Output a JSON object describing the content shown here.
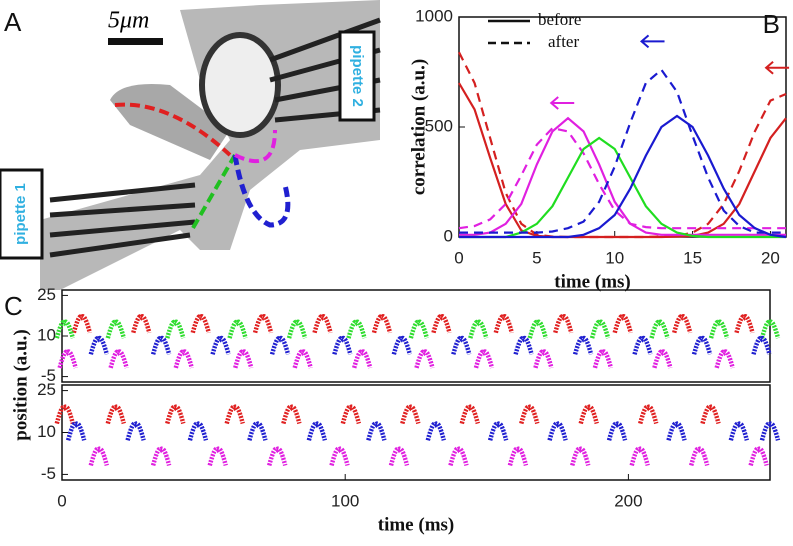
{
  "panel_a": {
    "label": "A",
    "scale_bar": "5μm",
    "pipettes": [
      "pipette 1",
      "pipette 2"
    ]
  },
  "chart_data": [
    {
      "type": "line",
      "label": "B",
      "xlabel": "time (ms)",
      "ylabel": "correlation (a.u.)",
      "x": [
        0,
        1,
        2,
        3,
        4,
        5,
        6,
        7,
        8,
        9,
        10,
        11,
        12,
        13,
        14,
        15,
        16,
        17,
        18,
        19,
        20,
        21
      ],
      "xlim": [
        0,
        21
      ],
      "xticks": [
        0,
        5,
        10,
        15,
        20
      ],
      "ylim": [
        0,
        1000
      ],
      "yticks": [
        0,
        500,
        1000
      ],
      "legend": [
        {
          "name": "before",
          "dash": "solid"
        },
        {
          "name": "after",
          "dash": "dashed"
        }
      ],
      "legend_position": "top",
      "series": [
        {
          "color": "#d42020",
          "dash": "solid",
          "values": [
            700,
            580,
            360,
            150,
            30,
            5,
            0,
            0,
            0,
            0,
            0,
            0,
            0,
            0,
            2,
            5,
            20,
            60,
            150,
            300,
            450,
            540
          ]
        },
        {
          "color": "#d42020",
          "dash": "dashed",
          "values": [
            840,
            700,
            450,
            200,
            60,
            10,
            2,
            0,
            0,
            0,
            0,
            0,
            0,
            2,
            5,
            20,
            60,
            150,
            300,
            480,
            620,
            650
          ]
        },
        {
          "color": "#e020e0",
          "dash": "solid",
          "values": [
            10,
            10,
            20,
            60,
            150,
            330,
            480,
            540,
            480,
            330,
            160,
            60,
            20,
            10,
            10,
            10,
            10,
            10,
            10,
            10,
            10,
            10
          ]
        },
        {
          "color": "#e020e0",
          "dash": "dashed",
          "values": [
            40,
            50,
            80,
            150,
            280,
            420,
            495,
            480,
            380,
            240,
            120,
            60,
            45,
            40,
            40,
            40,
            40,
            40,
            40,
            40,
            40,
            40
          ]
        },
        {
          "color": "#20dd20",
          "dash": "solid",
          "values": [
            0,
            0,
            0,
            0,
            20,
            60,
            140,
            270,
            400,
            450,
            400,
            270,
            140,
            60,
            20,
            5,
            0,
            0,
            0,
            0,
            0,
            0
          ]
        },
        {
          "color": "#1a1ad0",
          "dash": "solid",
          "values": [
            0,
            0,
            0,
            0,
            0,
            0,
            0,
            0,
            10,
            40,
            100,
            220,
            370,
            500,
            550,
            500,
            370,
            220,
            100,
            40,
            10,
            0
          ]
        },
        {
          "color": "#1a1ad0",
          "dash": "dashed",
          "values": [
            20,
            20,
            20,
            20,
            20,
            20,
            25,
            40,
            70,
            160,
            320,
            520,
            700,
            760,
            660,
            460,
            270,
            120,
            50,
            20,
            20,
            20
          ]
        }
      ]
    },
    {
      "type": "scatter",
      "label": "C",
      "marker": "arch",
      "xlim": [
        0,
        250
      ],
      "ylim": [
        -7,
        27
      ],
      "yticks": [
        -5,
        10,
        25
      ],
      "series": [
        {
          "color": "#e02020",
          "x": [
            7,
            28,
            49,
            71,
            92,
            113,
            134,
            156,
            177,
            198,
            219,
            241
          ],
          "values": [
            17,
            17,
            17,
            17,
            17,
            17,
            17,
            17,
            17,
            17,
            17,
            17
          ]
        },
        {
          "color": "#30dd30",
          "x": [
            1,
            19,
            40,
            62,
            83,
            104,
            126,
            147,
            168,
            190,
            211,
            232,
            250
          ],
          "values": [
            15,
            15,
            15,
            15,
            15,
            15,
            15,
            15,
            15,
            15,
            15,
            15,
            15
          ]
        },
        {
          "color": "#2020d0",
          "x": [
            13,
            35,
            56,
            77,
            99,
            120,
            141,
            163,
            184,
            205,
            226,
            247
          ],
          "values": [
            9,
            9,
            9,
            9,
            9,
            9,
            9,
            9,
            9,
            9,
            9,
            9
          ]
        },
        {
          "color": "#e020e0",
          "x": [
            2,
            20,
            43,
            64,
            85,
            106,
            128,
            149,
            170,
            191,
            212,
            234
          ],
          "values": [
            4,
            4,
            4,
            4,
            4,
            4,
            4,
            4,
            4,
            4,
            4,
            4
          ]
        }
      ]
    },
    {
      "type": "scatter",
      "marker": "arch",
      "xlabel": "time (ms)",
      "ylabel": "position (a.u.)",
      "xlim": [
        0,
        250
      ],
      "xticks": [
        0,
        100,
        200
      ],
      "ylim": [
        -7,
        27
      ],
      "yticks": [
        -5,
        10,
        25
      ],
      "series": [
        {
          "color": "#e02020",
          "x": [
            1,
            19,
            40,
            61,
            81,
            102,
            123,
            144,
            165,
            186,
            207,
            229
          ],
          "values": [
            19,
            19,
            19,
            19,
            19,
            19,
            19,
            19,
            19,
            19,
            19,
            19
          ]
        },
        {
          "color": "#2020d0",
          "x": [
            5,
            26,
            48,
            69,
            90,
            111,
            132,
            154,
            175,
            196,
            217,
            239,
            250
          ],
          "values": [
            13,
            13,
            13,
            13,
            13,
            13,
            13,
            13,
            13,
            13,
            13,
            13,
            13
          ]
        },
        {
          "color": "#e020e0",
          "x": [
            13,
            35,
            55,
            76,
            98,
            119,
            140,
            161,
            183,
            204,
            225,
            246
          ],
          "values": [
            4,
            4,
            4,
            4,
            4,
            4,
            4,
            4,
            4,
            4,
            4,
            4
          ]
        }
      ]
    }
  ]
}
